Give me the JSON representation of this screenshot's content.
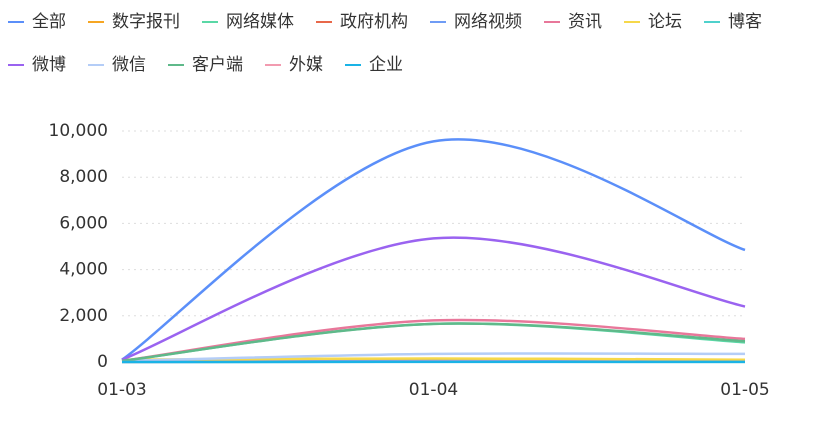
{
  "chart_data": {
    "type": "line",
    "categories": [
      "01-03",
      "01-04",
      "01-05"
    ],
    "series": [
      {
        "name": "全部",
        "color": "#5b8ff9",
        "values": [
          100,
          9550,
          4850
        ]
      },
      {
        "name": "数字报刊",
        "color": "#f6a623",
        "values": [
          20,
          60,
          30
        ]
      },
      {
        "name": "网络媒体",
        "color": "#5ad8a6",
        "values": [
          50,
          1650,
          850
        ]
      },
      {
        "name": "政府机构",
        "color": "#e8684a",
        "values": [
          10,
          40,
          20
        ]
      },
      {
        "name": "网络视频",
        "color": "#6f9cf5",
        "values": [
          10,
          50,
          30
        ]
      },
      {
        "name": "资讯",
        "color": "#e8779a",
        "values": [
          50,
          1800,
          1000
        ]
      },
      {
        "name": "论坛",
        "color": "#f6d84a",
        "values": [
          100,
          150,
          100
        ]
      },
      {
        "name": "博客",
        "color": "#4fd1cc",
        "values": [
          0,
          10,
          5
        ]
      },
      {
        "name": "微博",
        "color": "#9a63f0",
        "values": [
          100,
          5350,
          2400
        ]
      },
      {
        "name": "微信",
        "color": "#b4cdf7",
        "values": [
          50,
          350,
          350
        ]
      },
      {
        "name": "客户端",
        "color": "#5fb98a",
        "values": [
          50,
          1650,
          900
        ]
      },
      {
        "name": "外媒",
        "color": "#f29bb0",
        "values": [
          0,
          20,
          10
        ]
      },
      {
        "name": "企业",
        "color": "#1ab3e6",
        "values": [
          0,
          5,
          5
        ]
      }
    ],
    "ylim": [
      0,
      10000
    ],
    "yticks": [
      0,
      {
        "value": 2000,
        "label": "2,000"
      },
      {
        "value": 4000,
        "label": "4,000"
      },
      {
        "value": 6000,
        "label": "6,000"
      },
      {
        "value": 8000,
        "label": "8,000"
      },
      {
        "value": 10000,
        "label": "10,000"
      }
    ],
    "grid": true
  }
}
